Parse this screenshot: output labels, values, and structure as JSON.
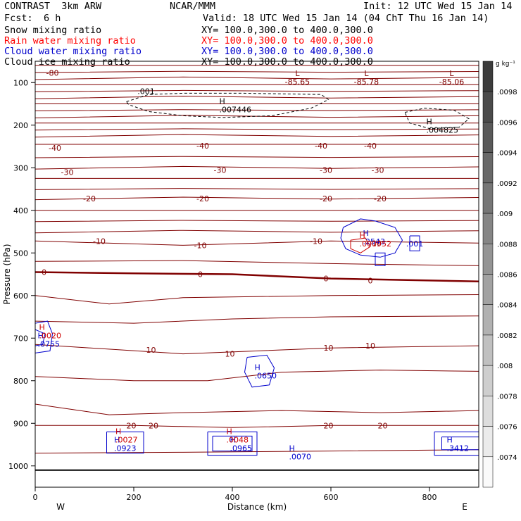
{
  "header": {
    "title": "CONTRAST  3km ARW",
    "center": "NCAR/MMM",
    "init": "Init: 12 UTC Wed 15 Jan 14",
    "fcst_label": "Fcst:",
    "fcst_value": "6 h",
    "valid": "Valid: 18 UTC Wed 15 Jan 14 (04 ChT Thu 16 Jan 14)",
    "fields": [
      {
        "name": "Snow mixing ratio",
        "xy": "XY= 100.0,300.0 to 400.0,300.0",
        "color": "#000000"
      },
      {
        "name": "Rain water mixing ratio",
        "xy": "XY= 100.0,300.0 to 400.0,300.0",
        "color": "#ff0000"
      },
      {
        "name": "Cloud water mixing ratio",
        "xy": "XY= 100.0,300.0 to 400.0,300.0",
        "color": "#0000cc"
      },
      {
        "name": "Cloud ice mixing ratio",
        "xy": "XY= 100.0,300.0 to 400.0,300.0",
        "color": "#000000"
      }
    ]
  },
  "chart_data": {
    "type": "contour",
    "xlabel": "Distance (km)",
    "ylabel": "Pressure (hPa)",
    "xlim": [
      0,
      900
    ],
    "ylim": [
      1050,
      50
    ],
    "x_ticks": [
      0,
      200,
      400,
      600,
      800
    ],
    "y_ticks": [
      100,
      200,
      300,
      400,
      500,
      600,
      700,
      800,
      900,
      1000
    ],
    "west_label": "W",
    "east_label": "E",
    "temperature_contours": {
      "color": "#800000",
      "levels": [
        {
          "value": -80,
          "labels": [
            {
              "x": 35,
              "p": 77,
              "text": "-80"
            }
          ]
        },
        {
          "value": -40,
          "labels": [
            {
              "x": 40,
              "p": 253,
              "text": "-40"
            },
            {
              "x": 340,
              "p": 248,
              "text": "-40"
            },
            {
              "x": 580,
              "p": 248,
              "text": "-40"
            },
            {
              "x": 680,
              "p": 248,
              "text": "-40"
            }
          ]
        },
        {
          "value": -30,
          "labels": [
            {
              "x": 65,
              "p": 310,
              "text": "-30"
            },
            {
              "x": 375,
              "p": 305,
              "text": "-30"
            },
            {
              "x": 590,
              "p": 305,
              "text": "-30"
            },
            {
              "x": 695,
              "p": 305,
              "text": "-30"
            }
          ]
        },
        {
          "value": -20,
          "labels": [
            {
              "x": 110,
              "p": 372,
              "text": "-20"
            },
            {
              "x": 340,
              "p": 372,
              "text": "-20"
            },
            {
              "x": 590,
              "p": 372,
              "text": "-20"
            },
            {
              "x": 700,
              "p": 372,
              "text": "-20"
            }
          ]
        },
        {
          "value": -10,
          "labels": [
            {
              "x": 130,
              "p": 472,
              "text": "-10"
            },
            {
              "x": 335,
              "p": 482,
              "text": "-10"
            },
            {
              "x": 570,
              "p": 472,
              "text": "-10"
            },
            {
              "x": 690,
              "p": 477,
              "text": "-10"
            }
          ]
        },
        {
          "value": 0,
          "labels": [
            {
              "x": 18,
              "p": 545,
              "text": "0"
            },
            {
              "x": 335,
              "p": 550,
              "text": "0"
            },
            {
              "x": 590,
              "p": 560,
              "text": "0"
            },
            {
              "x": 680,
              "p": 565,
              "text": "0"
            }
          ]
        },
        {
          "value": 10,
          "labels": [
            {
              "x": 235,
              "p": 728,
              "text": "10"
            },
            {
              "x": 395,
              "p": 737,
              "text": "10"
            },
            {
              "x": 595,
              "p": 723,
              "text": "10"
            },
            {
              "x": 680,
              "p": 718,
              "text": "10"
            }
          ]
        },
        {
          "value": 20,
          "labels": [
            {
              "x": 195,
              "p": 905,
              "text": "20"
            },
            {
              "x": 240,
              "p": 905,
              "text": "20"
            },
            {
              "x": 595,
              "p": 905,
              "text": "20"
            },
            {
              "x": 705,
              "p": 905,
              "text": "20"
            }
          ]
        }
      ],
      "lows": [
        {
          "x": 532,
          "p": 85,
          "mark": "L",
          "value": "-85.65"
        },
        {
          "x": 672,
          "p": 85,
          "mark": "L",
          "value": "-85.78"
        },
        {
          "x": 845,
          "p": 85,
          "mark": "L",
          "value": "-85.06"
        }
      ]
    },
    "cloud_ice": {
      "color": "#000000",
      "style": "dashed",
      "level_label": ".001",
      "maxima": [
        {
          "x": 385,
          "p": 150,
          "mark": "H",
          "value": ".007446"
        },
        {
          "x": 805,
          "p": 198,
          "mark": "H",
          "value": ".004825"
        }
      ]
    },
    "cloud_water": {
      "color": "#0000cc",
      "level_label": ".001",
      "maxima": [
        {
          "x": 665,
          "p": 460,
          "mark": "H",
          "value": ".2543"
        },
        {
          "x": 445,
          "p": 775,
          "mark": "H",
          "value": ".0650"
        },
        {
          "x": 515,
          "p": 965,
          "mark": "H",
          "value": ".0070"
        },
        {
          "x": 835,
          "p": 945,
          "mark": "H",
          "value": ".3412"
        },
        {
          "x": 160,
          "p": 945,
          "mark": "H",
          "value": ".0923"
        },
        {
          "x": 395,
          "p": 945,
          "mark": "H",
          "value": ".0965"
        },
        {
          "x": 5,
          "p": 700,
          "mark": "H",
          "value": ".0755"
        }
      ]
    },
    "rain_water": {
      "color": "#cc0000",
      "maxima": [
        {
          "x": 655,
          "p": 485,
          "mark": "H",
          "value": ".000952"
        },
        {
          "x": 160,
          "p": 945,
          "mark": "H",
          "value": ".0027"
        },
        {
          "x": 385,
          "p": 945,
          "mark": "H",
          "value": ".0048"
        },
        {
          "x": 5,
          "p": 700,
          "mark": "H",
          "value": ".0020"
        }
      ]
    },
    "colorbar": {
      "unit_label": "g kg⁻¹",
      "labels": [
        ".0098",
        ".0096",
        ".0094",
        ".0092",
        ".009",
        ".0088",
        ".0086",
        ".0084",
        ".0082",
        ".008",
        ".0078",
        ".0076",
        ".0074"
      ]
    }
  }
}
